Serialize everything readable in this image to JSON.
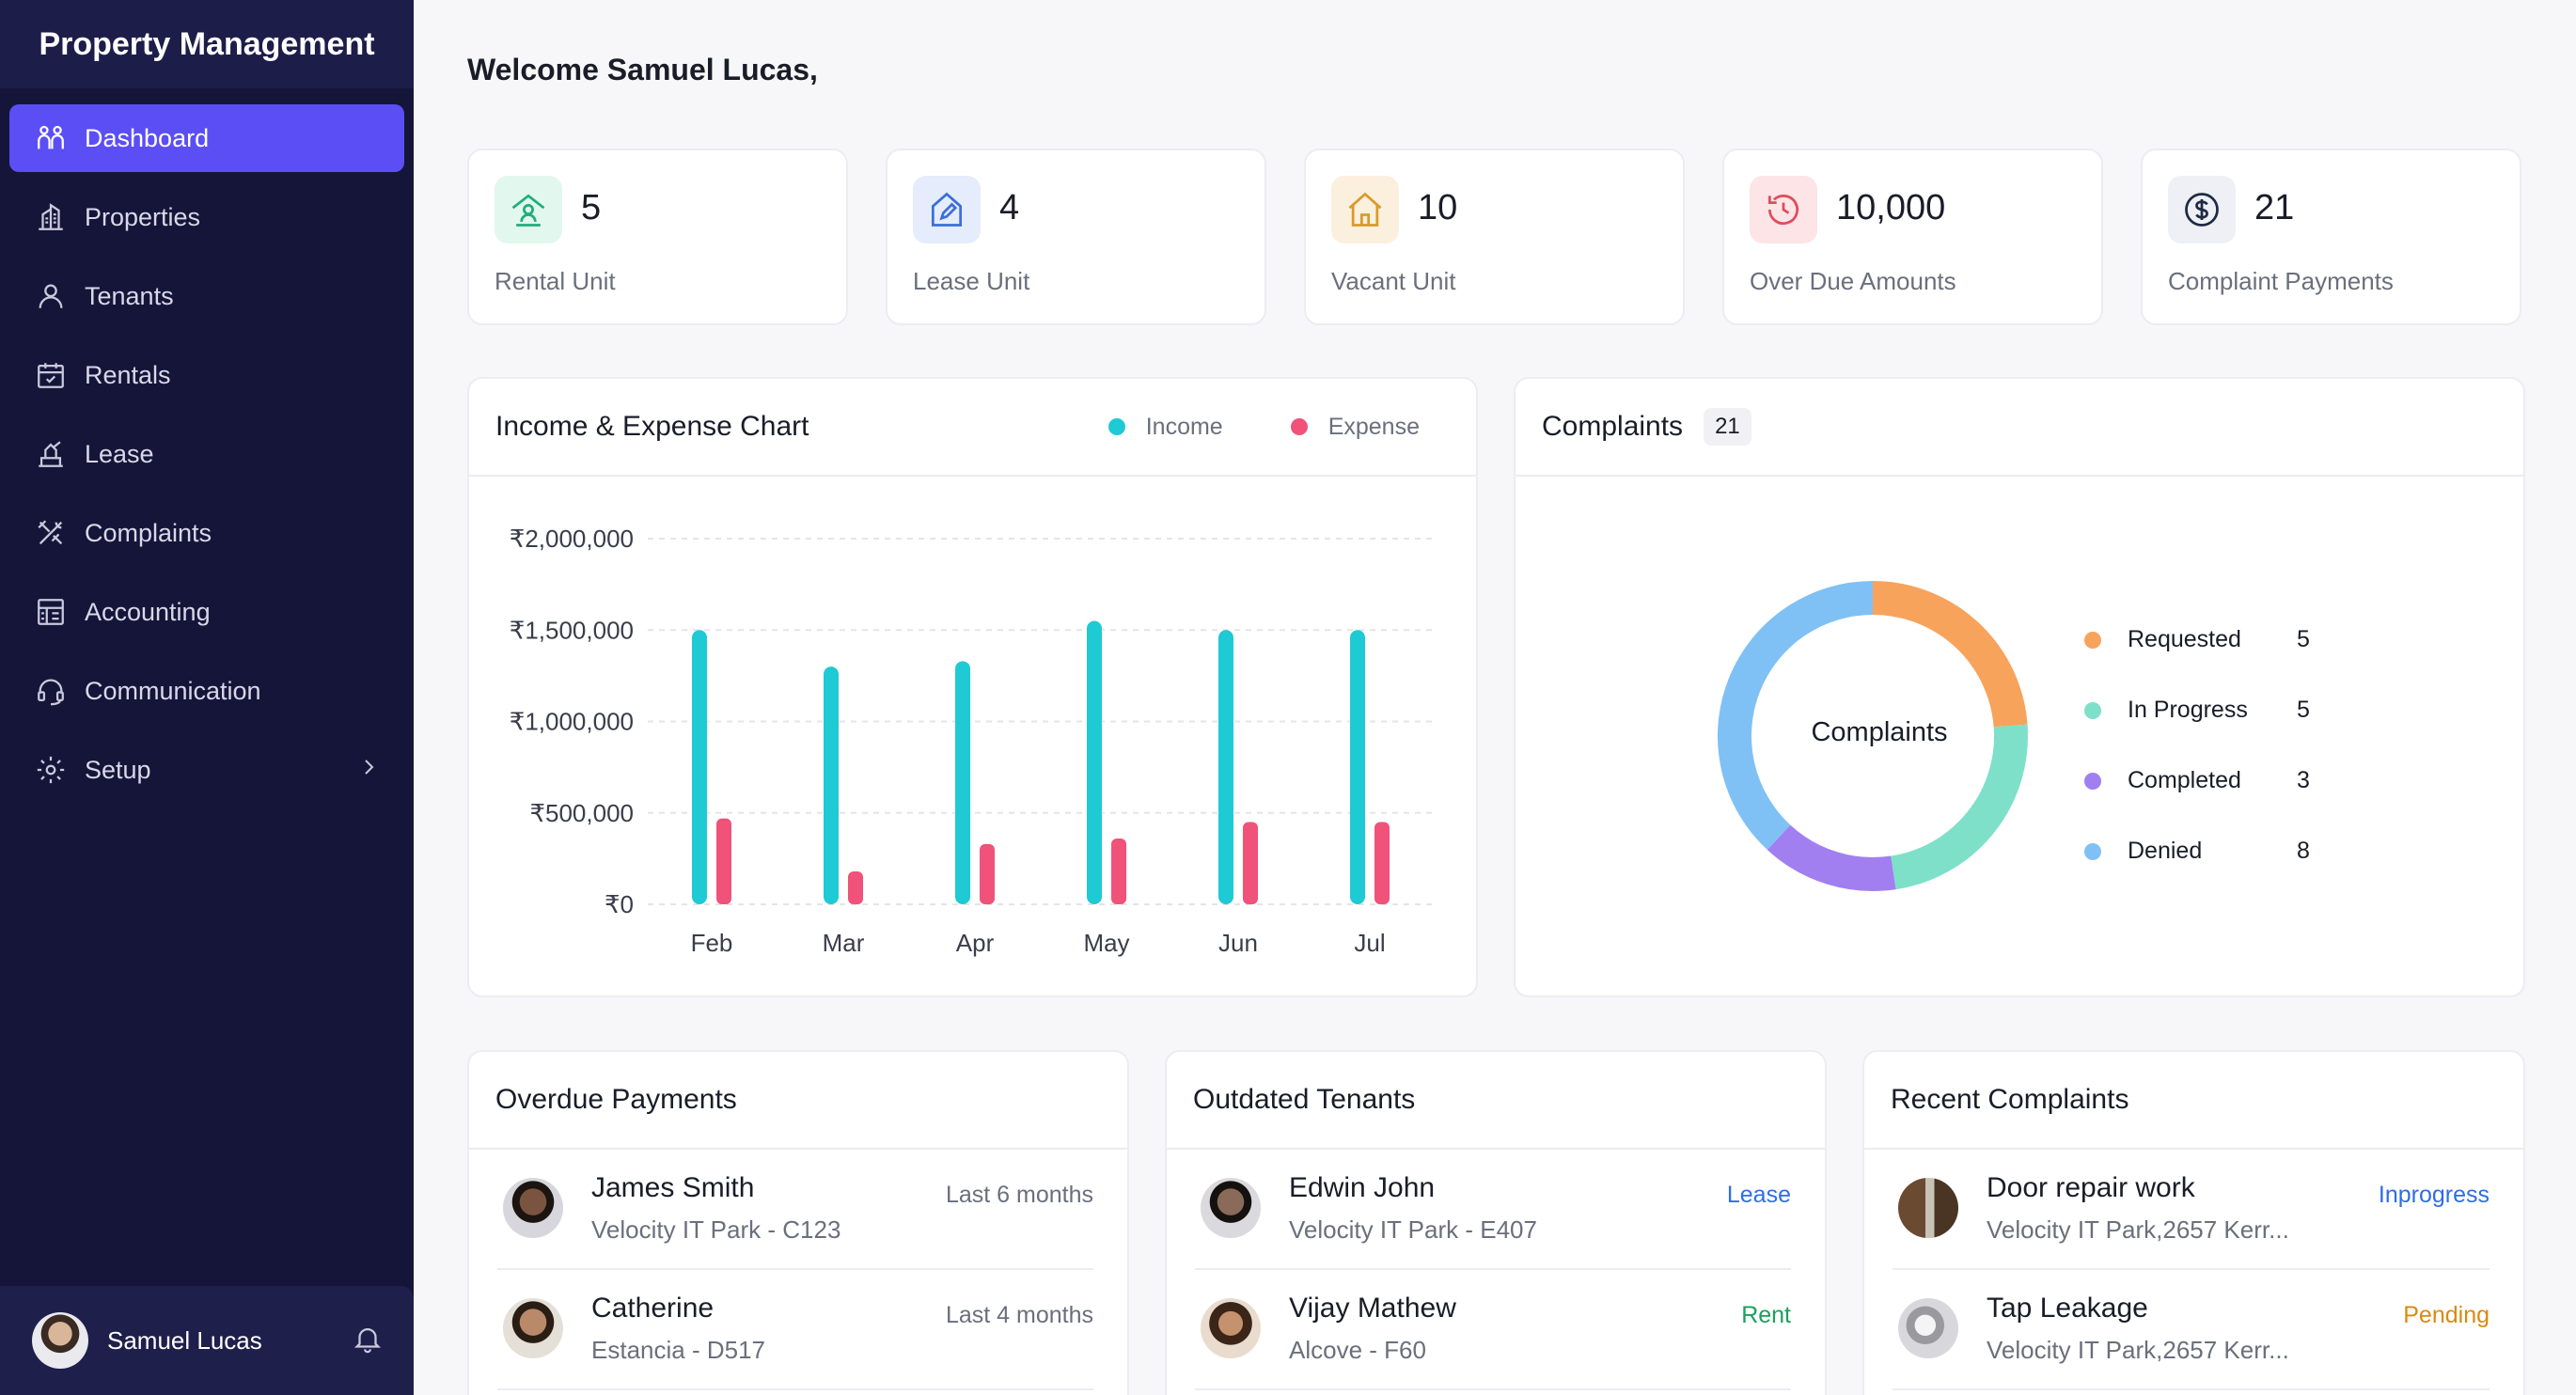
{
  "app": {
    "title": "Property Management"
  },
  "sidebar": {
    "items": [
      {
        "label": "Dashboard",
        "icon": "users-icon",
        "active": true
      },
      {
        "label": "Properties",
        "icon": "building-icon"
      },
      {
        "label": "Tenants",
        "icon": "user-icon"
      },
      {
        "label": "Rentals",
        "icon": "calendar-check-icon"
      },
      {
        "label": "Lease",
        "icon": "signature-icon"
      },
      {
        "label": "Complaints",
        "icon": "tools-icon"
      },
      {
        "label": "Accounting",
        "icon": "ledger-icon"
      },
      {
        "label": "Communication",
        "icon": "headset-icon"
      },
      {
        "label": "Setup",
        "icon": "gear-icon"
      }
    ],
    "user": {
      "name": "Samuel Lucas"
    }
  },
  "header": {
    "welcome": "Welcome Samuel Lucas,"
  },
  "stats": [
    {
      "value": "5",
      "label": "Rental Unit",
      "color": "#1fae7a",
      "icon": "home-user-icon"
    },
    {
      "value": "4",
      "label": "Lease Unit",
      "color": "#3b6fd8",
      "icon": "home-pen-icon"
    },
    {
      "value": "10",
      "label": "Vacant Unit",
      "color": "#d99a2b",
      "icon": "home-icon"
    },
    {
      "value": "10,000",
      "label": "Over Due Amounts",
      "color": "#e04b5a",
      "icon": "history-icon"
    },
    {
      "value": "21",
      "label": "Complaint Payments",
      "color": "#1f2a44",
      "icon": "dollar-circle-icon"
    }
  ],
  "income_chart": {
    "title": "Income & Expense Chart",
    "legend": {
      "income": "Income",
      "expense": "Expense"
    },
    "colors": {
      "income": "#1ecad3",
      "expense": "#f0527a"
    }
  },
  "complaints_panel": {
    "title": "Complaints",
    "count": "21",
    "center_label": "Complaints",
    "legend": [
      {
        "label": "Requested",
        "value": "5",
        "color": "#f7a35c"
      },
      {
        "label": "In Progress",
        "value": "5",
        "color": "#7ee0c8"
      },
      {
        "label": "Completed",
        "value": "3",
        "color": "#a17ff0"
      },
      {
        "label": "Denied",
        "value": "8",
        "color": "#7fc1f5"
      }
    ]
  },
  "chart_data": [
    {
      "type": "bar",
      "title": "Income & Expense Chart",
      "categories": [
        "Feb",
        "Mar",
        "Apr",
        "May",
        "Jun",
        "Jul"
      ],
      "series": [
        {
          "name": "Income",
          "values": [
            1500000,
            1300000,
            1330000,
            1550000,
            1500000,
            1500000
          ]
        },
        {
          "name": "Expense",
          "values": [
            470000,
            180000,
            330000,
            360000,
            450000,
            450000
          ]
        }
      ],
      "ylim": [
        0,
        2000000
      ],
      "yticks": [
        "₹0",
        "₹500,000",
        "₹1,000,000",
        "₹1,500,000",
        "₹2,000,000"
      ],
      "yticks_values": [
        0,
        500000,
        1000000,
        1500000,
        2000000
      ],
      "grid": true,
      "legend": "top-right"
    },
    {
      "type": "pie",
      "title": "Complaints",
      "categories": [
        "Requested",
        "In Progress",
        "Completed",
        "Denied"
      ],
      "values": [
        5,
        5,
        3,
        8
      ],
      "donut": true
    }
  ],
  "overdue": {
    "title": "Overdue Payments",
    "rows": [
      {
        "name": "James Smith",
        "sub": "Velocity IT Park - C123",
        "tag": "Last 6 months"
      },
      {
        "name": "Catherine",
        "sub": "Estancia - D517",
        "tag": "Last 4 months"
      }
    ]
  },
  "outdated": {
    "title": "Outdated Tenants",
    "rows": [
      {
        "name": "Edwin John",
        "sub": "Velocity IT Park - E407",
        "tag": "Lease",
        "tag_color": "#2d6ee6"
      },
      {
        "name": "Vijay Mathew",
        "sub": "Alcove - F60",
        "tag": "Rent",
        "tag_color": "#18a05e"
      }
    ]
  },
  "recent": {
    "title": "Recent Complaints",
    "rows": [
      {
        "name": "Door repair work",
        "sub": "Velocity IT Park,2657 Kerr...",
        "tag": "Inprogress",
        "tag_color": "#2d6ee6"
      },
      {
        "name": "Tap Leakage",
        "sub": "Velocity IT Park,2657 Kerr...",
        "tag": "Pending",
        "tag_color": "#d98a10"
      }
    ]
  }
}
